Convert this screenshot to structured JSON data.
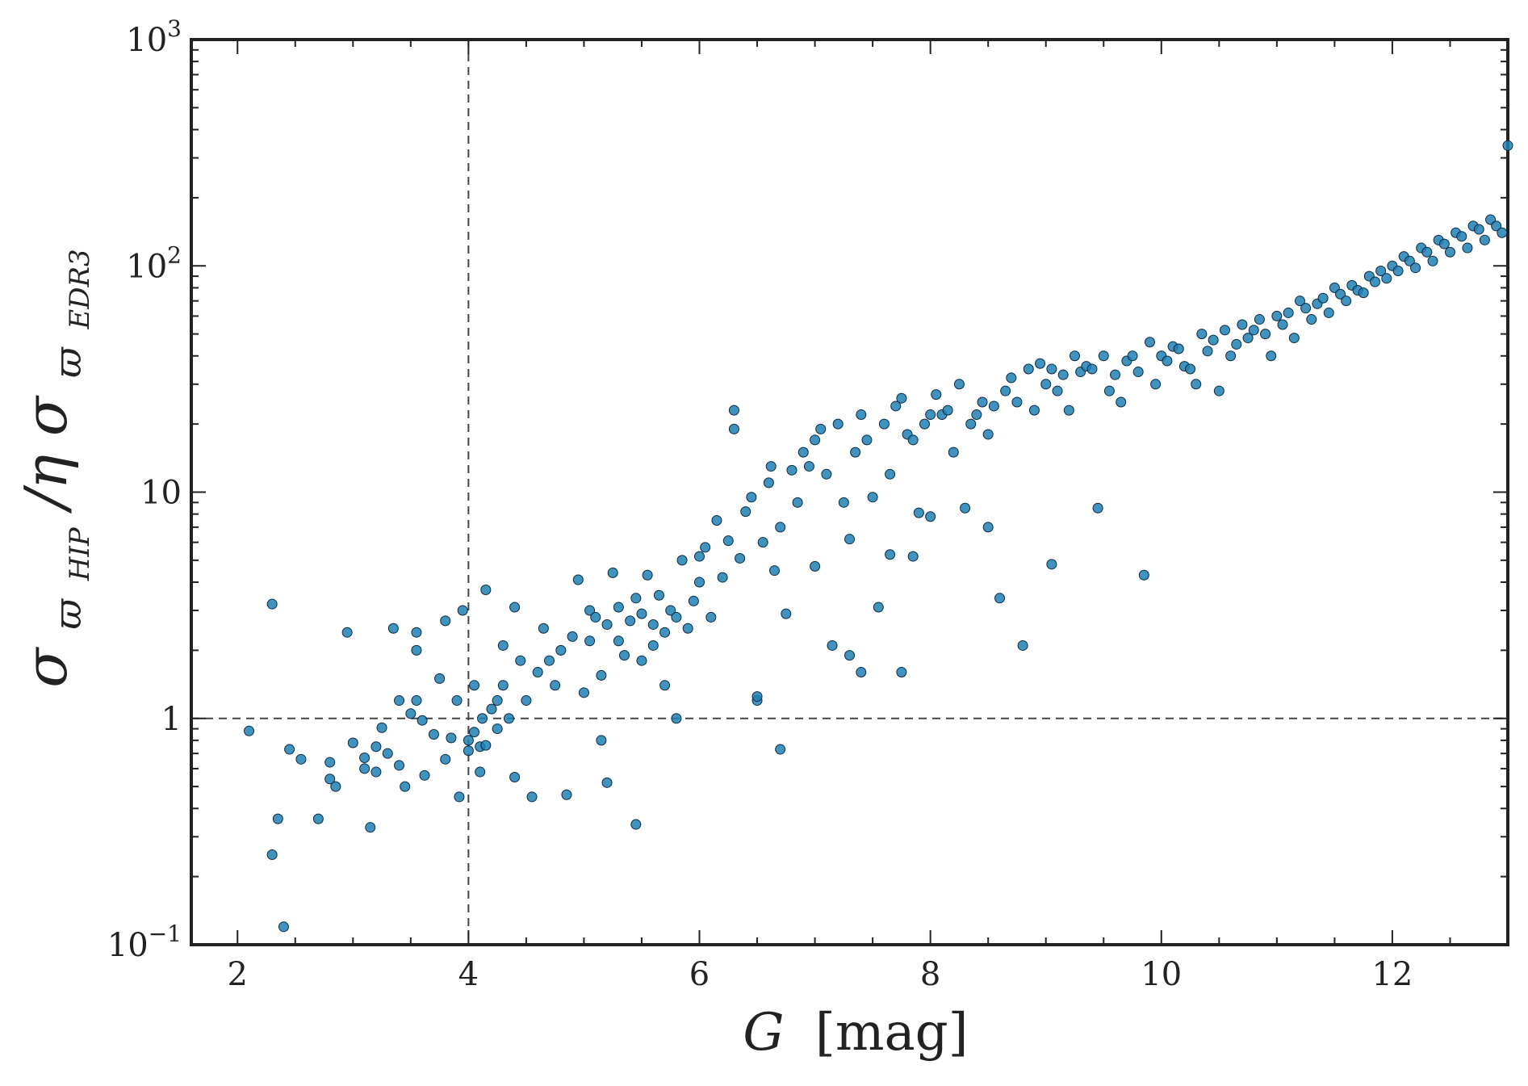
{
  "chart_data": {
    "type": "scatter",
    "xlabel": "G [mag]",
    "xlabel_parts": {
      "var": "G",
      "unit": "[mag]"
    },
    "ylabel": "σ_ϖHIP / η σ_ϖEDR3",
    "ylabel_parts": {
      "sigma": "σ",
      "varpi": "ϖ",
      "sub1": "HIP",
      "sep": "/η",
      "sub2": "EDR3"
    },
    "xlim": [
      1.6,
      13.0
    ],
    "ylim": [
      0.1,
      1000
    ],
    "yscale": "log",
    "x_ticks": [
      2,
      4,
      6,
      8,
      10,
      12
    ],
    "x_tick_labels": [
      "2",
      "4",
      "6",
      "8",
      "10",
      "12"
    ],
    "y_ticks": [
      {
        "value": 0.1,
        "base": "10",
        "exp": "−1"
      },
      {
        "value": 1,
        "base": "1",
        "exp": ""
      },
      {
        "value": 10,
        "base": "10",
        "exp": ""
      },
      {
        "value": 100,
        "base": "10",
        "exp": "2"
      },
      {
        "value": 1000,
        "base": "10",
        "exp": "3"
      }
    ],
    "reference_lines": [
      {
        "orientation": "vertical",
        "x": 4,
        "style": "dashed"
      },
      {
        "orientation": "horizontal",
        "y": 1,
        "style": "dashed"
      }
    ],
    "grid": false,
    "colors": {
      "marker": "#1f7fb4",
      "marker_edge": "#0b2a40",
      "axis": "#222222",
      "ref_line": "#444444"
    },
    "points": [
      [
        2.1,
        0.88
      ],
      [
        2.3,
        3.2
      ],
      [
        2.3,
        0.25
      ],
      [
        2.35,
        0.36
      ],
      [
        2.4,
        0.12
      ],
      [
        2.45,
        0.73
      ],
      [
        2.55,
        0.66
      ],
      [
        2.7,
        0.36
      ],
      [
        2.8,
        0.54
      ],
      [
        2.8,
        0.64
      ],
      [
        2.85,
        0.5
      ],
      [
        2.95,
        2.4
      ],
      [
        3.0,
        0.78
      ],
      [
        3.1,
        0.67
      ],
      [
        3.1,
        0.6
      ],
      [
        3.15,
        0.33
      ],
      [
        3.2,
        0.58
      ],
      [
        3.2,
        0.75
      ],
      [
        3.25,
        0.91
      ],
      [
        3.3,
        0.7
      ],
      [
        3.35,
        2.5
      ],
      [
        3.4,
        0.62
      ],
      [
        3.4,
        1.2
      ],
      [
        3.45,
        0.5
      ],
      [
        3.5,
        1.05
      ],
      [
        3.55,
        2.4
      ],
      [
        3.55,
        2.0
      ],
      [
        3.55,
        1.2
      ],
      [
        3.6,
        0.98
      ],
      [
        3.62,
        0.56
      ],
      [
        3.7,
        0.85
      ],
      [
        3.75,
        1.5
      ],
      [
        3.8,
        2.7
      ],
      [
        3.8,
        0.66
      ],
      [
        3.85,
        0.82
      ],
      [
        3.9,
        1.2
      ],
      [
        3.92,
        0.45
      ],
      [
        3.95,
        3.0
      ],
      [
        4.0,
        0.72
      ],
      [
        4.0,
        0.8
      ],
      [
        4.05,
        1.4
      ],
      [
        4.05,
        0.87
      ],
      [
        4.1,
        0.58
      ],
      [
        4.1,
        0.75
      ],
      [
        4.12,
        1.0
      ],
      [
        4.15,
        3.7
      ],
      [
        4.15,
        0.76
      ],
      [
        4.2,
        1.1
      ],
      [
        4.25,
        1.2
      ],
      [
        4.25,
        0.9
      ],
      [
        4.3,
        2.1
      ],
      [
        4.3,
        1.4
      ],
      [
        4.35,
        1.0
      ],
      [
        4.4,
        3.1
      ],
      [
        4.4,
        0.55
      ],
      [
        4.45,
        1.8
      ],
      [
        4.5,
        1.2
      ],
      [
        4.55,
        0.45
      ],
      [
        4.6,
        1.6
      ],
      [
        4.65,
        2.5
      ],
      [
        4.7,
        1.8
      ],
      [
        4.75,
        1.4
      ],
      [
        4.8,
        2.0
      ],
      [
        4.85,
        0.46
      ],
      [
        4.9,
        2.3
      ],
      [
        4.95,
        4.1
      ],
      [
        5.0,
        1.3
      ],
      [
        5.05,
        3.0
      ],
      [
        5.05,
        2.2
      ],
      [
        5.1,
        2.8
      ],
      [
        5.15,
        1.55
      ],
      [
        5.15,
        0.8
      ],
      [
        5.2,
        2.6
      ],
      [
        5.2,
        0.52
      ],
      [
        5.25,
        4.4
      ],
      [
        5.3,
        3.1
      ],
      [
        5.3,
        2.2
      ],
      [
        5.35,
        1.9
      ],
      [
        5.4,
        2.7
      ],
      [
        5.45,
        3.4
      ],
      [
        5.45,
        0.34
      ],
      [
        5.5,
        2.9
      ],
      [
        5.5,
        1.8
      ],
      [
        5.55,
        4.3
      ],
      [
        5.6,
        2.1
      ],
      [
        5.6,
        2.6
      ],
      [
        5.65,
        3.5
      ],
      [
        5.7,
        2.4
      ],
      [
        5.7,
        1.4
      ],
      [
        5.75,
        3.0
      ],
      [
        5.8,
        2.8
      ],
      [
        5.8,
        1.0
      ],
      [
        5.85,
        5.0
      ],
      [
        5.9,
        2.5
      ],
      [
        5.95,
        3.3
      ],
      [
        6.0,
        5.2
      ],
      [
        6.0,
        4.0
      ],
      [
        6.05,
        5.7
      ],
      [
        6.1,
        2.8
      ],
      [
        6.15,
        7.5
      ],
      [
        6.2,
        4.2
      ],
      [
        6.25,
        6.1
      ],
      [
        6.3,
        19.0
      ],
      [
        6.3,
        23.0
      ],
      [
        6.35,
        5.1
      ],
      [
        6.4,
        8.2
      ],
      [
        6.45,
        9.5
      ],
      [
        6.5,
        1.2
      ],
      [
        6.5,
        1.25
      ],
      [
        6.55,
        6.0
      ],
      [
        6.6,
        11.0
      ],
      [
        6.62,
        13.0
      ],
      [
        6.65,
        4.5
      ],
      [
        6.7,
        7.0
      ],
      [
        6.7,
        0.73
      ],
      [
        6.75,
        2.9
      ],
      [
        6.8,
        12.5
      ],
      [
        6.85,
        9.0
      ],
      [
        6.9,
        15.0
      ],
      [
        6.95,
        13.0
      ],
      [
        7.0,
        17.0
      ],
      [
        7.0,
        4.7
      ],
      [
        7.05,
        19.0
      ],
      [
        7.1,
        12.0
      ],
      [
        7.15,
        2.1
      ],
      [
        7.2,
        20.0
      ],
      [
        7.25,
        9.0
      ],
      [
        7.3,
        6.2
      ],
      [
        7.3,
        1.9
      ],
      [
        7.35,
        15.0
      ],
      [
        7.4,
        22.0
      ],
      [
        7.4,
        1.6
      ],
      [
        7.45,
        17.0
      ],
      [
        7.5,
        9.5
      ],
      [
        7.55,
        3.1
      ],
      [
        7.6,
        20.0
      ],
      [
        7.65,
        12.0
      ],
      [
        7.65,
        5.3
      ],
      [
        7.7,
        24.0
      ],
      [
        7.75,
        26.0
      ],
      [
        7.75,
        1.6
      ],
      [
        7.8,
        18.0
      ],
      [
        7.85,
        17.0
      ],
      [
        7.85,
        5.2
      ],
      [
        7.9,
        8.1
      ],
      [
        7.95,
        20.0
      ],
      [
        8.0,
        22.0
      ],
      [
        8.0,
        7.8
      ],
      [
        8.05,
        27.0
      ],
      [
        8.1,
        22.0
      ],
      [
        8.15,
        23.0
      ],
      [
        8.2,
        15.0
      ],
      [
        8.25,
        30.0
      ],
      [
        8.3,
        8.5
      ],
      [
        8.35,
        20.0
      ],
      [
        8.4,
        22.0
      ],
      [
        8.45,
        25.0
      ],
      [
        8.5,
        18.0
      ],
      [
        8.5,
        7.0
      ],
      [
        8.55,
        24.0
      ],
      [
        8.6,
        3.4
      ],
      [
        8.65,
        28.0
      ],
      [
        8.7,
        32.0
      ],
      [
        8.75,
        25.0
      ],
      [
        8.8,
        2.1
      ],
      [
        8.85,
        35.0
      ],
      [
        8.9,
        23.0
      ],
      [
        8.95,
        37.0
      ],
      [
        9.0,
        30.0
      ],
      [
        9.05,
        35.0
      ],
      [
        9.05,
        4.8
      ],
      [
        9.1,
        28.0
      ],
      [
        9.15,
        33.0
      ],
      [
        9.2,
        23.0
      ],
      [
        9.25,
        40.0
      ],
      [
        9.3,
        34.0
      ],
      [
        9.35,
        36.0
      ],
      [
        9.4,
        35.0
      ],
      [
        9.45,
        8.5
      ],
      [
        9.5,
        40.0
      ],
      [
        9.55,
        28.0
      ],
      [
        9.6,
        33.0
      ],
      [
        9.65,
        25.0
      ],
      [
        9.7,
        38.0
      ],
      [
        9.75,
        40.0
      ],
      [
        9.8,
        34.0
      ],
      [
        9.85,
        4.3
      ],
      [
        9.9,
        46.0
      ],
      [
        9.95,
        30.0
      ],
      [
        10.0,
        40.0
      ],
      [
        10.05,
        38.0
      ],
      [
        10.1,
        44.0
      ],
      [
        10.15,
        43.0
      ],
      [
        10.2,
        36.0
      ],
      [
        10.25,
        35.0
      ],
      [
        10.3,
        30.0
      ],
      [
        10.35,
        50.0
      ],
      [
        10.4,
        42.0
      ],
      [
        10.45,
        47.0
      ],
      [
        10.5,
        28.0
      ],
      [
        10.55,
        52.0
      ],
      [
        10.6,
        40.0
      ],
      [
        10.65,
        45.0
      ],
      [
        10.7,
        55.0
      ],
      [
        10.75,
        48.0
      ],
      [
        10.8,
        52.0
      ],
      [
        10.85,
        58.0
      ],
      [
        10.9,
        50.0
      ],
      [
        10.95,
        40.0
      ],
      [
        11.0,
        60.0
      ],
      [
        11.05,
        55.0
      ],
      [
        11.1,
        62.0
      ],
      [
        11.15,
        48.0
      ],
      [
        11.2,
        70.0
      ],
      [
        11.25,
        65.0
      ],
      [
        11.3,
        58.0
      ],
      [
        11.35,
        68.0
      ],
      [
        11.4,
        72.0
      ],
      [
        11.45,
        62.0
      ],
      [
        11.5,
        80.0
      ],
      [
        11.55,
        75.0
      ],
      [
        11.6,
        70.0
      ],
      [
        11.65,
        82.0
      ],
      [
        11.7,
        78.0
      ],
      [
        11.75,
        76.0
      ],
      [
        11.8,
        90.0
      ],
      [
        11.85,
        85.0
      ],
      [
        11.9,
        95.0
      ],
      [
        11.95,
        88.0
      ],
      [
        12.0,
        100.0
      ],
      [
        12.05,
        95.0
      ],
      [
        12.1,
        110.0
      ],
      [
        12.15,
        105.0
      ],
      [
        12.2,
        98.0
      ],
      [
        12.25,
        120.0
      ],
      [
        12.3,
        115.0
      ],
      [
        12.35,
        105.0
      ],
      [
        12.4,
        130.0
      ],
      [
        12.45,
        125.0
      ],
      [
        12.5,
        115.0
      ],
      [
        12.55,
        140.0
      ],
      [
        12.6,
        135.0
      ],
      [
        12.65,
        120.0
      ],
      [
        12.7,
        150.0
      ],
      [
        12.75,
        145.0
      ],
      [
        12.8,
        130.0
      ],
      [
        12.85,
        160.0
      ],
      [
        12.9,
        150.0
      ],
      [
        12.95,
        140.0
      ],
      [
        13.0,
        340.0
      ]
    ]
  }
}
